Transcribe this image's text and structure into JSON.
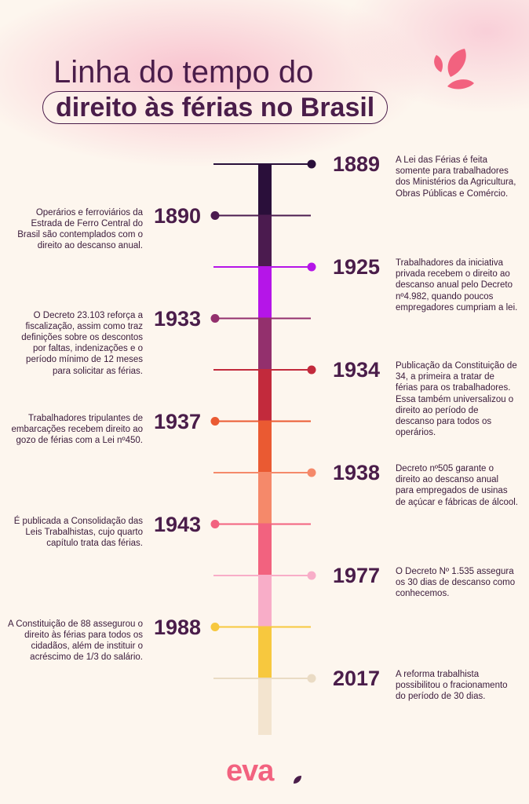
{
  "title": {
    "line1": "Linha do tempo do",
    "line2": "direito às férias no Brasil"
  },
  "brand": {
    "name": "eva",
    "color": "#f2627f"
  },
  "icons": [
    "leaf-petals-icon",
    "logo-dot-icon"
  ],
  "timeline": [
    {
      "year": "1889",
      "side": "right",
      "color": "#2a0f3a",
      "text": "A Lei das Férias é feita somente para trabalhadores dos Ministérios da Agricultura, Obras Públicas e Comércio."
    },
    {
      "year": "1890",
      "side": "left",
      "color": "#4b1b4f",
      "text": "Operários e ferroviários da Estrada de Ferro Central do Brasil são contemplados com o direito ao descanso anual."
    },
    {
      "year": "1925",
      "side": "right",
      "color": "#b515e8",
      "text": "Trabalhadores da iniciativa privada recebem o direito ao descanso anual pelo Decreto nº4.982, quando poucos empregadores cumpriam a lei."
    },
    {
      "year": "1933",
      "side": "left",
      "color": "#93306d",
      "text": "O Decreto 23.103 reforça a fiscalização, assim como traz definições sobre os descontos por faltas, indenizações e o período mínimo de 12 meses para solicitar as férias."
    },
    {
      "year": "1934",
      "side": "right",
      "color": "#c22a3c",
      "text": "Publicação da Constituição de 34, a primeira a tratar de férias para os trabalhadores. Essa também universalizou o direito ao período de descanso para todos os operários."
    },
    {
      "year": "1937",
      "side": "left",
      "color": "#ea5a32",
      "text": "Trabalhadores tripulantes de embarcações recebem direito ao gozo de férias com a Lei nº450."
    },
    {
      "year": "1938",
      "side": "right",
      "color": "#f5896a",
      "text": "Decreto nº505 garante o direito ao descanso anual para empregados de usinas de açúcar e fábricas de álcool."
    },
    {
      "year": "1943",
      "side": "left",
      "color": "#f2627f",
      "text": "É publicada a Consolidação das Leis Trabalhistas, cujo quarto capítulo trata das férias."
    },
    {
      "year": "1977",
      "side": "right",
      "color": "#f8adc8",
      "text": "O Decreto Nº 1.535 assegura os 30 dias de descanso como conhecemos."
    },
    {
      "year": "1988",
      "side": "left",
      "color": "#f7c83e",
      "text": "A Constituição de 88 assegurou o direito às férias para todos os cidadãos, além de instituir o acréscimo de 1/3 do salário."
    },
    {
      "year": "2017",
      "side": "right",
      "color": "#f3e4cf",
      "text": "A reforma trabalhista possibilitou o fracionamento do período de 30 dias."
    }
  ]
}
